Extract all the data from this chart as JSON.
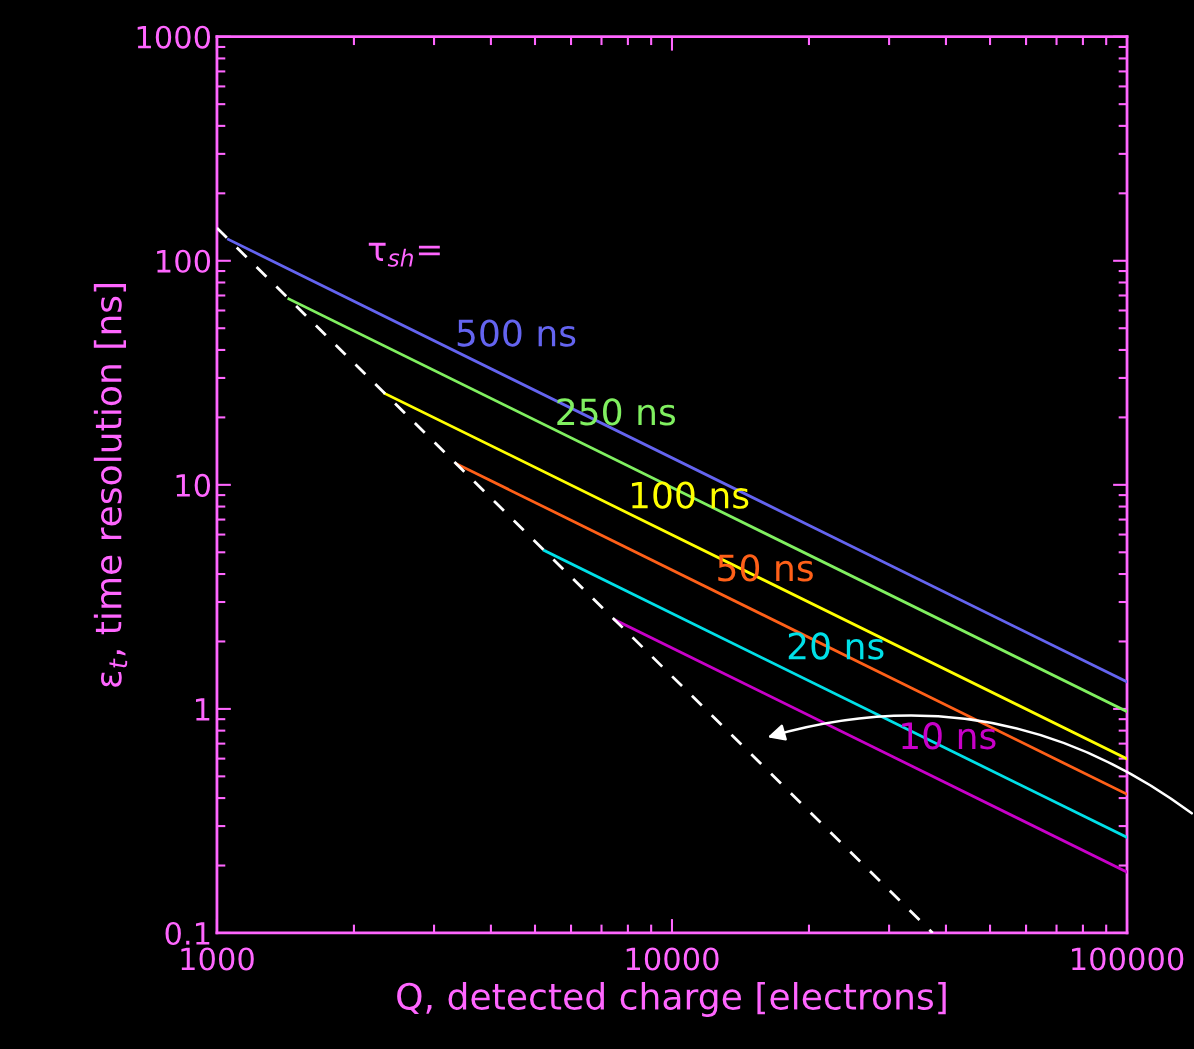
{
  "chart_data": {
    "type": "line",
    "xlabel": "Q, detected charge [electrons]",
    "ylabel": "ε$_{t}$, time resolution [ns]",
    "log": "xy",
    "xlim": [
      1000,
      100000
    ],
    "ylim": [
      0.1,
      1000
    ],
    "xticks": [
      1000,
      10000,
      100000
    ],
    "yticks": [
      0.1,
      1,
      10,
      100,
      1000
    ],
    "grid": false,
    "marker": "none",
    "annotations": [
      "τ$_{sh}$="
    ],
    "series": [
      {
        "name": "500 ns",
        "color": "#6464f0",
        "x": [
          1060,
          100000
        ],
        "values": [
          124.5,
          1.32
        ]
      },
      {
        "name": "250 ns",
        "color": "#80f060",
        "x": [
          1439,
          100000
        ],
        "values": [
          67.6,
          0.973
        ]
      },
      {
        "name": "100 ns",
        "color": "#ffff00",
        "x": [
          2337,
          100000
        ],
        "values": [
          25.6,
          0.599
        ]
      },
      {
        "name": "50 ns",
        "color": "#ff6018",
        "x": [
          3365,
          100000
        ],
        "values": [
          12.4,
          0.416
        ]
      },
      {
        "name": "20 ns",
        "color": "#00e0e8",
        "x": [
          5243,
          100000
        ],
        "values": [
          5.09,
          0.267
        ]
      },
      {
        "name": "10 ns",
        "color": "#c800c8",
        "x": [
          7487,
          100000
        ],
        "values": [
          2.5,
          0.187
        ]
      },
      {
        "color": "#ffffff",
        "x": [
          1000,
          37400
        ],
        "values": [
          140,
          0.1
        ],
        "line_style": "dashed"
      }
    ]
  }
}
